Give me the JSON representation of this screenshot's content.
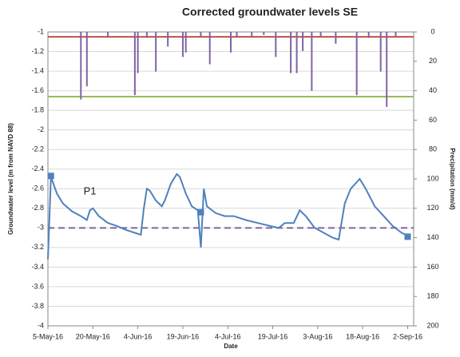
{
  "chart_data": {
    "type": "combo",
    "title": "Corrected groundwater levels SE",
    "y_label": "Groundwater level (m from NAVD 88)",
    "y2_label": "Precipitation (mm/d)",
    "x_label": "Date",
    "xlim": [
      "2016-05-05",
      "2016-09-04"
    ],
    "xticks": [
      {
        "value": "2016-05-05",
        "label": "5-May-16"
      },
      {
        "value": "2016-05-20",
        "label": "20-May-16"
      },
      {
        "value": "2016-06-04",
        "label": "4-Jun-16"
      },
      {
        "value": "2016-06-19",
        "label": "19-Jun-16"
      },
      {
        "value": "2016-07-04",
        "label": "4-Jul-16"
      },
      {
        "value": "2016-07-19",
        "label": "19-Jul-16"
      },
      {
        "value": "2016-08-03",
        "label": "3-Aug-16"
      },
      {
        "value": "2016-08-18",
        "label": "18-Aug-16"
      },
      {
        "value": "2016-09-02",
        "label": "2-Sep-16"
      }
    ],
    "ylim": [
      -4,
      -1
    ],
    "yticks": [
      -1,
      -1.2,
      -1.4,
      -1.6,
      -1.8,
      -2,
      -2.2,
      -2.4,
      -2.6,
      -2.8,
      -3,
      -3.2,
      -3.4,
      -3.6,
      -3.8,
      -4
    ],
    "y2lim": [
      0,
      200
    ],
    "y2_inverted": true,
    "y2ticks": [
      0,
      20,
      40,
      60,
      80,
      100,
      120,
      140,
      160,
      180,
      200
    ],
    "grid": true,
    "series": [
      {
        "type": "line",
        "color": "#4f81bd",
        "x": [
          "2016-05-05",
          "2016-05-06",
          "2016-05-08",
          "2016-05-10",
          "2016-05-13",
          "2016-05-16",
          "2016-05-18",
          "2016-05-19",
          "2016-05-20",
          "2016-05-22",
          "2016-05-25",
          "2016-05-28",
          "2016-05-31",
          "2016-06-03",
          "2016-06-05",
          "2016-06-06",
          "2016-06-07",
          "2016-06-08",
          "2016-06-10",
          "2016-06-12",
          "2016-06-13",
          "2016-06-15",
          "2016-06-17",
          "2016-06-18",
          "2016-06-20",
          "2016-06-22",
          "2016-06-24",
          "2016-06-25",
          "2016-06-26",
          "2016-06-27",
          "2016-06-30",
          "2016-07-03",
          "2016-07-06",
          "2016-07-10",
          "2016-07-14",
          "2016-07-18",
          "2016-07-21",
          "2016-07-23",
          "2016-07-26",
          "2016-07-28",
          "2016-07-30",
          "2016-08-02",
          "2016-08-05",
          "2016-08-08",
          "2016-08-10",
          "2016-08-12",
          "2016-08-14",
          "2016-08-17",
          "2016-08-19",
          "2016-08-22",
          "2016-08-25",
          "2016-08-28",
          "2016-08-31",
          "2016-09-02"
        ],
        "values": [
          -3.32,
          -2.48,
          -2.65,
          -2.75,
          -2.83,
          -2.88,
          -2.92,
          -2.82,
          -2.8,
          -2.88,
          -2.95,
          -2.98,
          -3.02,
          -3.05,
          -3.07,
          -2.8,
          -2.6,
          -2.62,
          -2.72,
          -2.78,
          -2.72,
          -2.55,
          -2.45,
          -2.48,
          -2.65,
          -2.78,
          -2.82,
          -3.2,
          -2.6,
          -2.78,
          -2.85,
          -2.88,
          -2.88,
          -2.92,
          -2.95,
          -2.98,
          -3.0,
          -2.95,
          -2.95,
          -2.82,
          -2.88,
          -3.0,
          -3.05,
          -3.1,
          -3.12,
          -2.75,
          -2.6,
          -2.5,
          -2.6,
          -2.78,
          -2.88,
          -2.98,
          -3.05,
          -3.08
        ]
      },
      {
        "type": "bar",
        "axis": "y2",
        "color": "#8064a2",
        "x": [
          "2016-05-16",
          "2016-05-18",
          "2016-05-25",
          "2016-06-03",
          "2016-06-04",
          "2016-06-07",
          "2016-06-10",
          "2016-06-14",
          "2016-06-19",
          "2016-06-20",
          "2016-06-25",
          "2016-06-28",
          "2016-07-05",
          "2016-07-07",
          "2016-07-12",
          "2016-07-16",
          "2016-07-20",
          "2016-07-25",
          "2016-07-27",
          "2016-07-29",
          "2016-08-01",
          "2016-08-04",
          "2016-08-09",
          "2016-08-16",
          "2016-08-20",
          "2016-08-24",
          "2016-08-26",
          "2016-08-29"
        ],
        "values": [
          46,
          37,
          3,
          43,
          28,
          4,
          27,
          10,
          17,
          14,
          3,
          22,
          14,
          3,
          3,
          2,
          17,
          28,
          28,
          13,
          40,
          3,
          8,
          43,
          4,
          27,
          51,
          3
        ]
      },
      {
        "type": "scatter",
        "color": "#4f81bd",
        "x": [
          "2016-05-06",
          "2016-06-25",
          "2016-09-02"
        ],
        "values": [
          -2.47,
          -2.84,
          -3.09
        ]
      }
    ],
    "hlines": [
      {
        "y": -1.05,
        "color": "#c0504d",
        "dash": false
      },
      {
        "y": -1.66,
        "color": "#9bbb59",
        "dash": false
      },
      {
        "y": -3.0,
        "color": "#8064a2",
        "dash": true
      }
    ],
    "annotations": [
      {
        "text": "P1",
        "x": "2016-05-19",
        "y": -2.63
      }
    ]
  }
}
